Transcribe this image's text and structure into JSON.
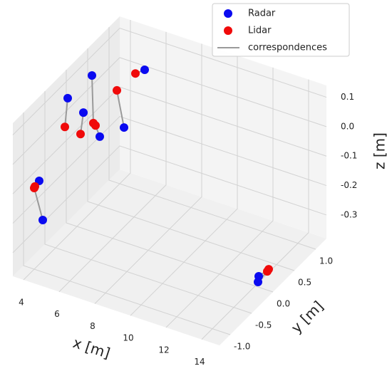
{
  "chart_data": {
    "type": "scatter3d",
    "xlabel": "x [m]",
    "ylabel": "y [m]",
    "zlabel": "z [m]",
    "xlim": [
      3.4,
      15.0
    ],
    "ylim": [
      -1.25,
      1.25
    ],
    "zlim": [
      -0.38,
      0.14
    ],
    "xticks": [
      4,
      6,
      8,
      10,
      12,
      14
    ],
    "yticks": [
      {
        "value": -1.0,
        "label": "-1.0"
      },
      {
        "value": -0.5,
        "label": "-0.5"
      },
      {
        "value": 0.0,
        "label": "0.0"
      },
      {
        "value": 0.5,
        "label": "0.5"
      },
      {
        "value": 1.0,
        "label": "1.0"
      }
    ],
    "zticks": [
      {
        "value": -0.3,
        "label": "-0.3"
      },
      {
        "value": -0.2,
        "label": "-0.2"
      },
      {
        "value": -0.1,
        "label": "-0.1"
      },
      {
        "value": 0.0,
        "label": "0.0"
      },
      0.1
    ],
    "grid": true,
    "legend": "upper right",
    "series": [
      {
        "name": "Radar",
        "color": "#0a0af0",
        "x": [
          5.88,
          4.36,
          3.96,
          4.36,
          5.28,
          5.68,
          3.8,
          4.0,
          14.92,
          14.88
        ],
        "y": [
          0.8,
          0.2,
          -0.2,
          0.0,
          0.0,
          0.4,
          -0.8,
          -0.8,
          -0.3,
          -0.3
        ],
        "z": [
          0.074,
          0.111,
          0.084,
          0.014,
          -0.049,
          -0.068,
          -0.113,
          -0.242,
          -0.285,
          -0.305
        ]
      },
      {
        "name": "Lidar",
        "color": "#f00a0a",
        "x": [
          5.36,
          4.44,
          3.8,
          4.2,
          5.04,
          5.28,
          3.56,
          3.52,
          14.52,
          14.44
        ],
        "y": [
          0.8,
          0.2,
          -0.2,
          0.0,
          0.0,
          0.4,
          -0.8,
          -0.8,
          0.1,
          0.1
        ],
        "z": [
          0.051,
          -0.049,
          -0.017,
          -0.062,
          -0.016,
          0.05,
          -0.137,
          -0.143,
          -0.327,
          -0.336
        ]
      }
    ],
    "correspondences": {
      "name": "correspondences",
      "color": "#9a9a9a"
    }
  }
}
